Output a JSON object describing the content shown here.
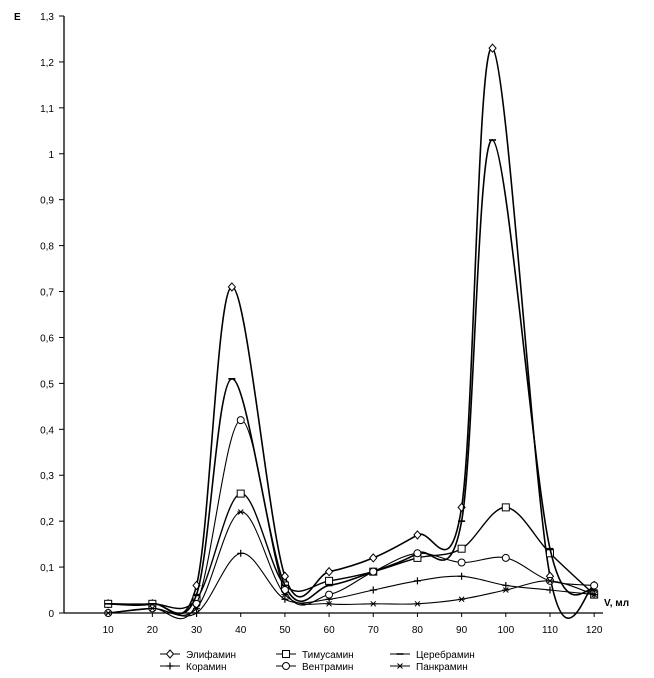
{
  "chart_data": {
    "type": "line",
    "ylabel": "E",
    "xlabel": "V, мл",
    "xlim": [
      0,
      122
    ],
    "ylim": [
      0,
      1.3
    ],
    "xticks": [
      "10",
      "20",
      "30",
      "40",
      "50",
      "60",
      "70",
      "80",
      "90",
      "100",
      "110",
      "120"
    ],
    "yticks": [
      "0",
      "0,1",
      "0,2",
      "0,3",
      "0,4",
      "0,5",
      "0,6",
      "0,7",
      "0,8",
      "0,9",
      "1",
      "1,1",
      "1,2",
      "1,3"
    ],
    "grid": false,
    "legend_position": "bottom",
    "series": [
      {
        "name": "Элифамин",
        "marker": "diamond",
        "x": [
          10,
          20,
          30,
          38,
          50,
          60,
          70,
          80,
          90,
          97,
          110,
          120
        ],
        "y": [
          0.02,
          0.02,
          0.06,
          0.71,
          0.08,
          0.09,
          0.12,
          0.17,
          0.23,
          1.23,
          0.08,
          0.06
        ]
      },
      {
        "name": "Тимусамин",
        "marker": "square",
        "x": [
          10,
          20,
          30,
          40,
          50,
          60,
          70,
          80,
          90,
          100,
          110,
          120
        ],
        "y": [
          0.02,
          0.02,
          0.03,
          0.26,
          0.06,
          0.07,
          0.09,
          0.12,
          0.14,
          0.23,
          0.13,
          0.04
        ]
      },
      {
        "name": "Церебрамин",
        "marker": "dash",
        "x": [
          10,
          20,
          30,
          38,
          50,
          60,
          70,
          80,
          90,
          97,
          110,
          120
        ],
        "y": [
          0.02,
          0.02,
          0.04,
          0.51,
          0.06,
          0.06,
          0.09,
          0.13,
          0.2,
          1.03,
          0.14,
          0.05
        ]
      },
      {
        "name": "Корамин",
        "marker": "plus",
        "x": [
          10,
          20,
          30,
          40,
          50,
          60,
          70,
          80,
          90,
          100,
          110,
          120
        ],
        "y": [
          0.0,
          0.01,
          0.0,
          0.13,
          0.03,
          0.03,
          0.05,
          0.07,
          0.08,
          0.06,
          0.05,
          0.04
        ]
      },
      {
        "name": "Вентрамин",
        "marker": "circle",
        "x": [
          10,
          20,
          30,
          40,
          50,
          60,
          70,
          80,
          90,
          100,
          110,
          120
        ],
        "y": [
          0.0,
          0.01,
          0.02,
          0.42,
          0.05,
          0.04,
          0.09,
          0.13,
          0.11,
          0.12,
          0.07,
          0.06
        ]
      },
      {
        "name": "Панкрамин",
        "marker": "star",
        "x": [
          10,
          20,
          30,
          40,
          50,
          60,
          70,
          80,
          90,
          100,
          110,
          120
        ],
        "y": [
          0.0,
          0.01,
          0.01,
          0.22,
          0.04,
          0.02,
          0.02,
          0.02,
          0.03,
          0.05,
          0.07,
          0.04
        ]
      }
    ]
  }
}
